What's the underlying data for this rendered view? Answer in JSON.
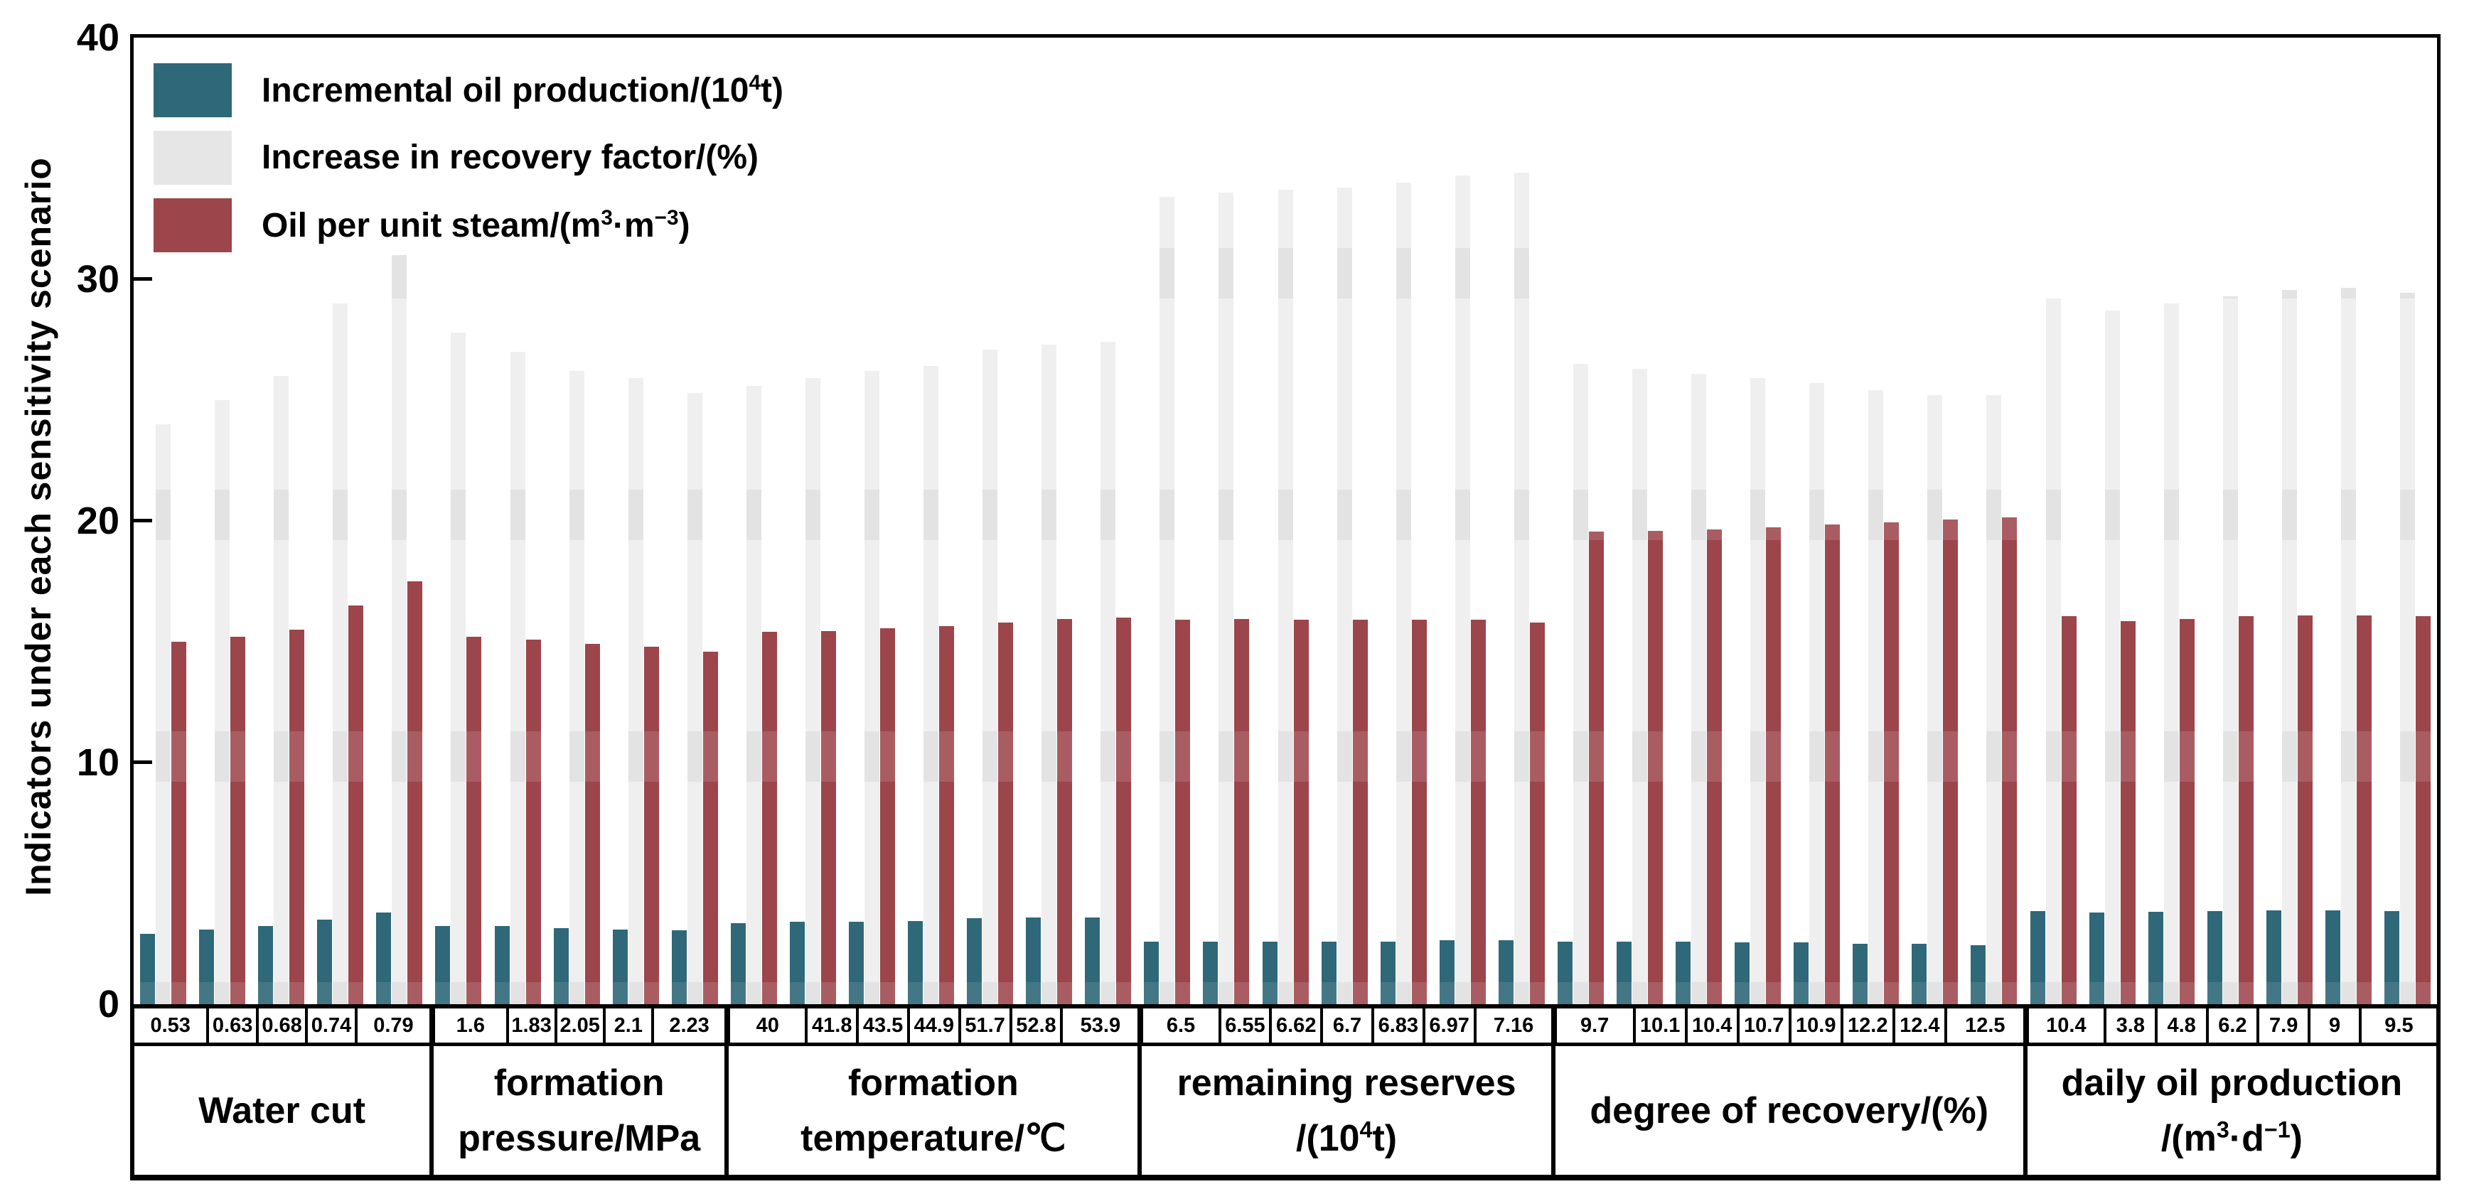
{
  "chart_data": {
    "type": "bar",
    "title": "",
    "ylabel": "Indicators under each sensitivity scenario",
    "ylim": [
      0,
      40
    ],
    "yticks": [
      "0",
      "10",
      "20",
      "30",
      "40"
    ],
    "grid": false,
    "legend_position": "top-left-inside",
    "legend": [
      {
        "id": "incremental",
        "color": "#2f6878",
        "label_rich": [
          "Incremental oil production/(10",
          {
            "sup": "4"
          },
          "t)"
        ],
        "label_text": "Incremental oil production/(10^4 t)"
      },
      {
        "id": "recovery",
        "color": "#e6e6e6",
        "label_rich": [
          "Increase in recovery factor/(%)"
        ],
        "label_text": "Increase in recovery factor/(%)"
      },
      {
        "id": "oil",
        "color": "#9c454b",
        "label_rich": [
          "Oil per unit steam/(m",
          {
            "sup": "3"
          },
          "·m",
          {
            "sup": "−3"
          },
          ")"
        ],
        "label_text": "Oil per unit steam/(m^3·m^-3)"
      }
    ],
    "groups": [
      {
        "name": "Water cut",
        "label_lines": [
          [
            "Water cut"
          ]
        ],
        "tick_labels": [
          "0.53",
          "0.63",
          "0.68",
          "0.74",
          "0.79"
        ],
        "incremental": [
          2.9,
          3.1,
          3.25,
          3.5,
          3.8
        ],
        "recovery": [
          24.0,
          25.0,
          26.0,
          29.0,
          31.0
        ],
        "oil_per_unit_steam": [
          15.0,
          15.2,
          15.5,
          16.5,
          17.5
        ]
      },
      {
        "name": "formation pressure/MPa",
        "label_lines": [
          [
            "formation"
          ],
          [
            "pressure/MPa"
          ]
        ],
        "tick_labels": [
          "1.6",
          "1.83",
          "2.05",
          "2.1",
          "2.23"
        ],
        "incremental": [
          3.25,
          3.25,
          3.15,
          3.1,
          3.05
        ],
        "recovery": [
          27.8,
          27.0,
          26.2,
          25.9,
          25.3
        ],
        "oil_per_unit_steam": [
          15.2,
          15.1,
          14.9,
          14.8,
          14.6
        ]
      },
      {
        "name": "formation temperature/℃",
        "label_lines": [
          [
            "formation"
          ],
          [
            "temperature/℃"
          ]
        ],
        "tick_labels": [
          "40",
          "41.8",
          "43.5",
          "44.9",
          "51.7",
          "52.8",
          "53.9"
        ],
        "incremental": [
          3.35,
          3.4,
          3.4,
          3.45,
          3.55,
          3.6,
          3.6
        ],
        "recovery": [
          25.6,
          25.9,
          26.2,
          26.4,
          27.1,
          27.3,
          27.4
        ],
        "oil_per_unit_steam": [
          15.4,
          15.45,
          15.55,
          15.65,
          15.8,
          15.95,
          16.0
        ]
      },
      {
        "name": "remaining reserves/(10^4 t)",
        "label_lines": [
          [
            "remaining reserves"
          ],
          [
            "/(10",
            {
              "sup": "4"
            },
            "t)"
          ]
        ],
        "tick_labels": [
          "6.5",
          "6.55",
          "6.62",
          "6.7",
          "6.83",
          "6.97",
          "7.16"
        ],
        "incremental": [
          2.6,
          2.6,
          2.6,
          2.6,
          2.6,
          2.65,
          2.65
        ],
        "recovery": [
          33.4,
          33.6,
          33.7,
          33.8,
          34.0,
          34.3,
          34.4
        ],
        "oil_per_unit_steam": [
          15.9,
          15.95,
          15.9,
          15.9,
          15.9,
          15.9,
          15.8
        ]
      },
      {
        "name": "degree of recovery/(%)",
        "label_lines": [
          [
            "degree of recovery/(%)"
          ]
        ],
        "tick_labels": [
          "9.7",
          "10.1",
          "10.4",
          "10.7",
          "10.9",
          "12.2",
          "12.4",
          "12.5"
        ],
        "incremental": [
          2.6,
          2.6,
          2.6,
          2.55,
          2.55,
          2.5,
          2.5,
          2.45
        ],
        "recovery": [
          26.5,
          26.3,
          26.1,
          25.9,
          25.7,
          25.4,
          25.2,
          25.2
        ],
        "oil_per_unit_steam": [
          19.55,
          19.6,
          19.65,
          19.75,
          19.85,
          19.95,
          20.05,
          20.15
        ]
      },
      {
        "name": "daily oil production/(m^3·d^-1)",
        "label_lines": [
          [
            "daily oil production"
          ],
          [
            "/(m",
            {
              "sup": "3"
            },
            "·d",
            {
              "sup": "−1"
            },
            ")"
          ]
        ],
        "tick_labels": [
          "10.4",
          "3.8",
          "4.8",
          "6.2",
          "7.9",
          "9",
          "9.5"
        ],
        "incremental": [
          3.85,
          3.8,
          3.82,
          3.85,
          3.87,
          3.88,
          3.85
        ],
        "recovery": [
          29.2,
          28.7,
          29.0,
          29.3,
          29.55,
          29.65,
          29.45
        ],
        "oil_per_unit_steam": [
          16.05,
          15.85,
          15.95,
          16.05,
          16.1,
          16.1,
          16.05
        ]
      }
    ],
    "bar_colors": {
      "incremental": "#2f6878",
      "recovery": "#efefef",
      "oil_per_unit_steam": "#9c454b"
    }
  }
}
